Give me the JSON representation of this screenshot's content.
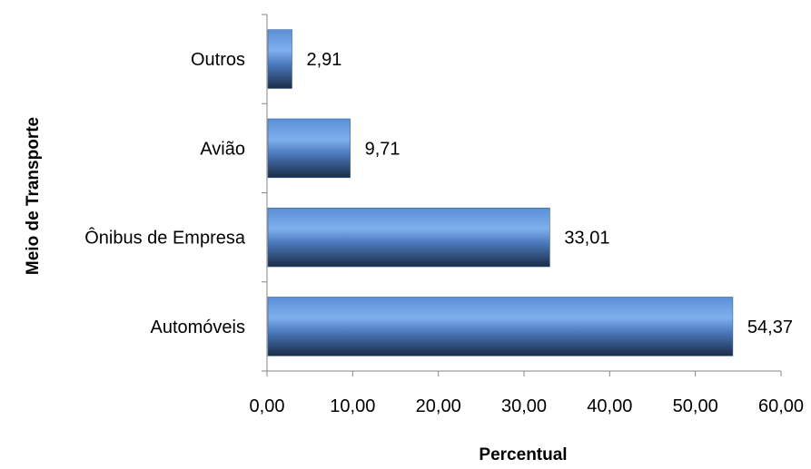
{
  "chart_data": {
    "type": "bar",
    "orientation": "horizontal",
    "title": "",
    "xlabel": "Percentual",
    "ylabel": "Meio de Transporte",
    "categories": [
      "Automóveis",
      "Ônibus de Empresa",
      "Avião",
      "Outros"
    ],
    "values": [
      54.37,
      33.01,
      9.71,
      2.91
    ],
    "value_labels": [
      "54,37",
      "33,01",
      "9,71",
      "2,91"
    ],
    "xlim": [
      0,
      60
    ],
    "xticks": [
      0,
      10,
      20,
      30,
      40,
      50,
      60
    ],
    "xtick_labels": [
      "0,00",
      "10,00",
      "20,00",
      "30,00",
      "40,00",
      "50,00",
      "60,00"
    ],
    "grid": false,
    "legend": "none",
    "bar_color": "#4F81BD"
  }
}
